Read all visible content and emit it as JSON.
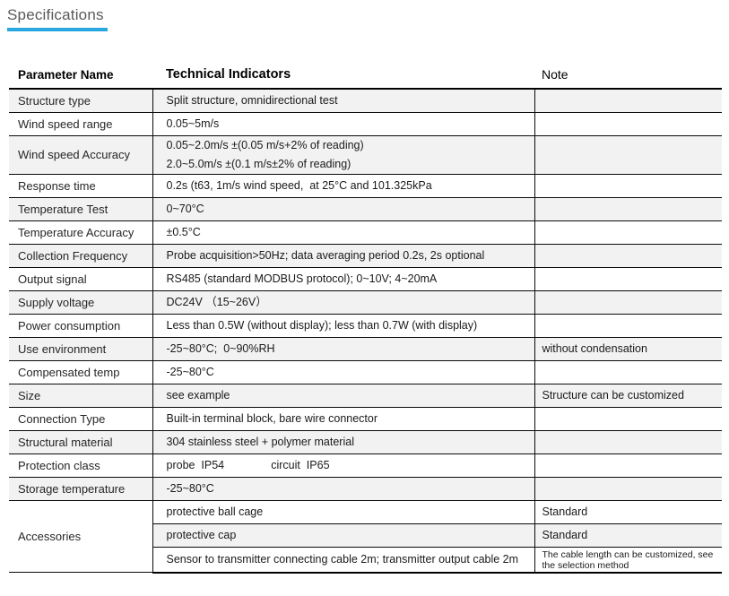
{
  "page": {
    "title": "Specifications"
  },
  "colors": {
    "accent_underline": "#29a7e0",
    "stripe_row": "#f2f2f2",
    "title_text": "#58595b",
    "border": "#000000"
  },
  "table": {
    "headers": [
      "Parameter Name",
      "Technical Indicators",
      "Note"
    ],
    "rows": [
      {
        "param": "Structure type",
        "value": [
          "Split structure, omnidirectional test"
        ],
        "note": ""
      },
      {
        "param": "Wind speed range",
        "value": [
          "0.05~5m/s"
        ],
        "note": ""
      },
      {
        "param": "Wind speed Accuracy",
        "value": [
          "0.05~2.0m/s ±(0.05 m/s+2% of reading)",
          "2.0~5.0m/s ±(0.1 m/s±2% of reading)"
        ],
        "note": ""
      },
      {
        "param": "Response time",
        "value": [
          "0.2s (t63, 1m/s wind speed,  at 25°C and 101.325kPa"
        ],
        "note": ""
      },
      {
        "param": "Temperature Test",
        "value": [
          "0~70°C"
        ],
        "note": ""
      },
      {
        "param": "Temperature Accuracy",
        "value": [
          "±0.5°C"
        ],
        "note": ""
      },
      {
        "param": "Collection Frequency",
        "value": [
          "Probe acquisition>50Hz; data averaging period 0.2s, 2s optional"
        ],
        "note": ""
      },
      {
        "param": "Output signal",
        "value": [
          "RS485 (standard MODBUS protocol); 0~10V; 4~20mA"
        ],
        "note": ""
      },
      {
        "param": "Supply voltage",
        "value": [
          "DC24V （15~26V）"
        ],
        "note": ""
      },
      {
        "param": "Power consumption",
        "value": [
          "Less than 0.5W (without display); less than 0.7W (with display)"
        ],
        "note": ""
      },
      {
        "param": "Use environment",
        "value": [
          "-25~80°C;  0~90%RH"
        ],
        "note": "without condensation"
      },
      {
        "param": "Compensated temp",
        "value": [
          "-25~80°C"
        ],
        "note": ""
      },
      {
        "param": "Size",
        "value": [
          "see example"
        ],
        "note": "Structure can be customized"
      },
      {
        "param": "Connection Type",
        "value": [
          "Built-in terminal block, bare wire connector"
        ],
        "note": ""
      },
      {
        "param": "Structural material",
        "value": [
          "304 stainless steel + polymer material"
        ],
        "note": ""
      },
      {
        "param": "Protection class",
        "value": [
          "probe  IP54               circuit  IP65"
        ],
        "note": ""
      },
      {
        "param": "Storage temperature",
        "value": [
          "-25~80°C"
        ],
        "note": ""
      },
      {
        "param": "Accessories",
        "rowspan": 3,
        "value": [
          "protective ball cage"
        ],
        "note": "Standard"
      },
      {
        "param": null,
        "value": [
          "protective cap"
        ],
        "note": "Standard"
      },
      {
        "param": null,
        "value": [
          "Sensor to transmitter connecting cable 2m; transmitter output cable 2m"
        ],
        "note": "The cable length can be customized, see the selection method",
        "note_small": true
      }
    ]
  }
}
